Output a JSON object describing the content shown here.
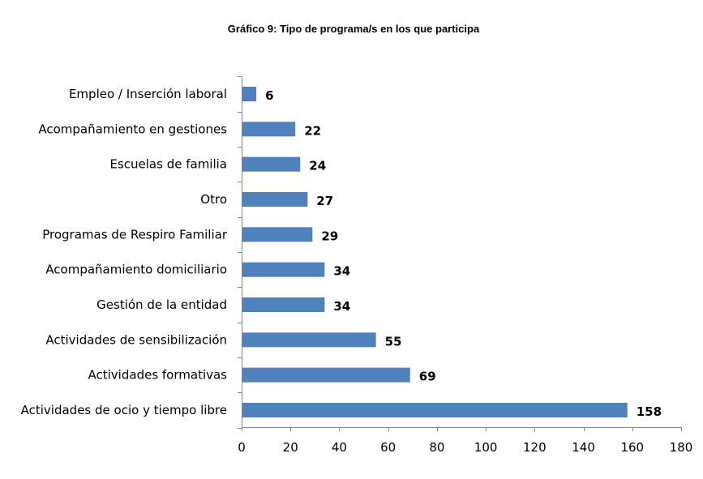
{
  "chart_data": {
    "type": "bar",
    "orientation": "horizontal",
    "title": "Gráfico 9: Tipo de programa/s en los que participa",
    "xlabel": "",
    "ylabel": "",
    "categories": [
      "Empleo / Inserción laboral",
      "Acompañamiento en gestiones",
      "Escuelas de familia",
      "Otro",
      "Programas de Respiro Familiar",
      "Acompañamiento domiciliario",
      "Gestión de la entidad",
      "Actividades de sensibilización",
      "Actividades formativas",
      "Actividades de ocio y tiempo libre"
    ],
    "values": [
      6,
      22,
      24,
      27,
      29,
      34,
      34,
      55,
      69,
      158
    ],
    "xlim": [
      0,
      180
    ],
    "xticks": [
      0,
      20,
      40,
      60,
      80,
      100,
      120,
      140,
      160,
      180
    ],
    "grid": false,
    "legend": "none",
    "bar_color": "#4f81bd",
    "data_labels": true
  }
}
